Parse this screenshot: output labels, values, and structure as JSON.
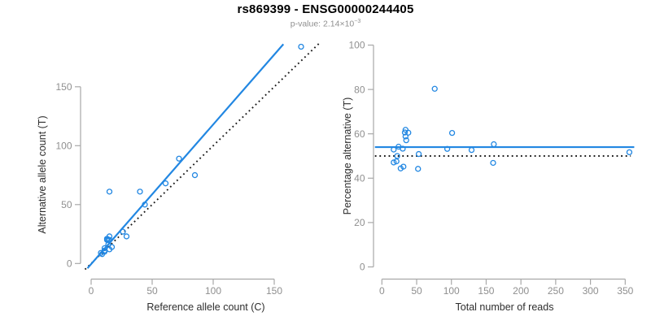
{
  "header": {
    "title": "rs869399 - ENSG00000244405",
    "pvalue_label": "p-value: 2.14×10",
    "pvalue_exponent": "−3"
  },
  "colors": {
    "point_blue": "#2287E2",
    "line_blue": "#2287E2",
    "dotted_black": "#1A1A1A",
    "axis_gray": "#A8A8A8",
    "tick_label_gray": "#8F8F8F",
    "axis_title_dark": "#2E2E2E"
  },
  "chart_data": {
    "type": "scatter",
    "title": "rs869399 - ENSG00000244405",
    "subtitle": "p-value: 2.14×10⁻³",
    "grid": false,
    "legend": "none",
    "samples": [
      {
        "ref": 13,
        "alt": 21,
        "total": 34,
        "pct": 61.8
      },
      {
        "ref": 13,
        "alt": 20,
        "total": 33,
        "pct": 60.6
      },
      {
        "ref": 15,
        "alt": 23,
        "total": 38,
        "pct": 60.5
      },
      {
        "ref": 14,
        "alt": 20,
        "total": 34,
        "pct": 58.8
      },
      {
        "ref": 15,
        "alt": 20,
        "total": 35,
        "pct": 57.1
      },
      {
        "ref": 40,
        "alt": 61,
        "total": 101,
        "pct": 60.4
      },
      {
        "ref": 11,
        "alt": 13,
        "total": 24,
        "pct": 54.2
      },
      {
        "ref": 8,
        "alt": 9,
        "total": 17,
        "pct": 52.9
      },
      {
        "ref": 14,
        "alt": 16,
        "total": 30,
        "pct": 53.3
      },
      {
        "ref": 44,
        "alt": 50,
        "total": 94,
        "pct": 53.2
      },
      {
        "ref": 11,
        "alt": 11,
        "total": 22,
        "pct": 50.0
      },
      {
        "ref": 26,
        "alt": 27,
        "total": 53,
        "pct": 50.9
      },
      {
        "ref": 9,
        "alt": 8,
        "total": 17,
        "pct": 47.1
      },
      {
        "ref": 11,
        "alt": 10,
        "total": 21,
        "pct": 47.6
      },
      {
        "ref": 15,
        "alt": 12,
        "total": 27,
        "pct": 44.4
      },
      {
        "ref": 17,
        "alt": 14,
        "total": 31,
        "pct": 45.2
      },
      {
        "ref": 29,
        "alt": 23,
        "total": 52,
        "pct": 44.2
      },
      {
        "ref": 15,
        "alt": 61,
        "total": 76,
        "pct": 80.3
      },
      {
        "ref": 72,
        "alt": 89,
        "total": 161,
        "pct": 55.3
      },
      {
        "ref": 85,
        "alt": 75,
        "total": 160,
        "pct": 46.9
      },
      {
        "ref": 61,
        "alt": 68,
        "total": 129,
        "pct": 52.7
      },
      {
        "ref": 172,
        "alt": 184,
        "total": 356,
        "pct": 51.7
      }
    ],
    "plots": [
      {
        "name": "allele-counts-scatter",
        "x_field": "ref",
        "y_field": "alt",
        "xlabel": "Reference allele count (C)",
        "ylabel": "Alternative allele count (T)",
        "x_ticks": [
          0,
          50,
          100,
          150
        ],
        "y_ticks": [
          0,
          50,
          100,
          150
        ],
        "xlim": [
          -8,
          192
        ],
        "ylim": [
          -14,
          196
        ],
        "lines": [
          {
            "name": "identity-line",
            "style": "dotted",
            "color_key": "dotted_black",
            "slope": 1,
            "intercept": 0,
            "x_range": [
              -5,
              187.5
            ]
          },
          {
            "name": "regression-line",
            "style": "solid",
            "color_key": "line_blue",
            "slope": 1.185,
            "intercept": -0.5,
            "x_range": [
              -3,
              157.5
            ]
          }
        ]
      },
      {
        "name": "percentage-vs-coverage-scatter",
        "x_field": "total",
        "y_field": "pct",
        "xlabel": "Total number of reads",
        "ylabel": "Percentage alternative (T)",
        "x_ticks": [
          0,
          50,
          100,
          150,
          200,
          250,
          300,
          350
        ],
        "y_ticks": [
          0,
          20,
          40,
          60,
          80,
          100
        ],
        "xlim": [
          -14,
          372
        ],
        "ylim": [
          -5,
          104
        ],
        "lines": [
          {
            "name": "expected-50-percent-line",
            "style": "dotted",
            "color_key": "dotted_black",
            "slope": 0,
            "intercept": 50,
            "x_range": [
              -10,
              358
            ]
          },
          {
            "name": "mean-percentage-line",
            "style": "solid",
            "color_key": "line_blue",
            "slope": 0,
            "intercept": 54,
            "x_range": [
              -10,
              363
            ]
          }
        ]
      }
    ]
  }
}
